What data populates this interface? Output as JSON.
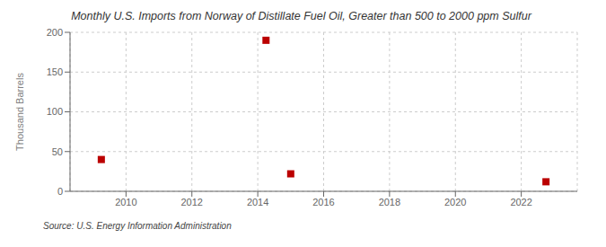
{
  "chart_data": {
    "type": "scatter",
    "title": "Monthly U.S. Imports from Norway of Distillate Fuel Oil, Greater than 500 to 2000 ppm Sulfur",
    "ylabel": "Thousand Barrels",
    "source": "Source: U.S. Energy Information Administration",
    "x": [
      2009.25,
      2014.25,
      2015.0,
      2022.75
    ],
    "values": [
      40,
      190,
      22,
      12
    ],
    "color": "#bb0000",
    "marker": "square",
    "xlim": [
      2008.3,
      2023.7
    ],
    "ylim": [
      0,
      200
    ],
    "xticks": [
      2010,
      2012,
      2014,
      2016,
      2018,
      2020,
      2022
    ],
    "yticks": [
      0,
      50,
      100,
      150,
      200
    ],
    "grid": true
  }
}
